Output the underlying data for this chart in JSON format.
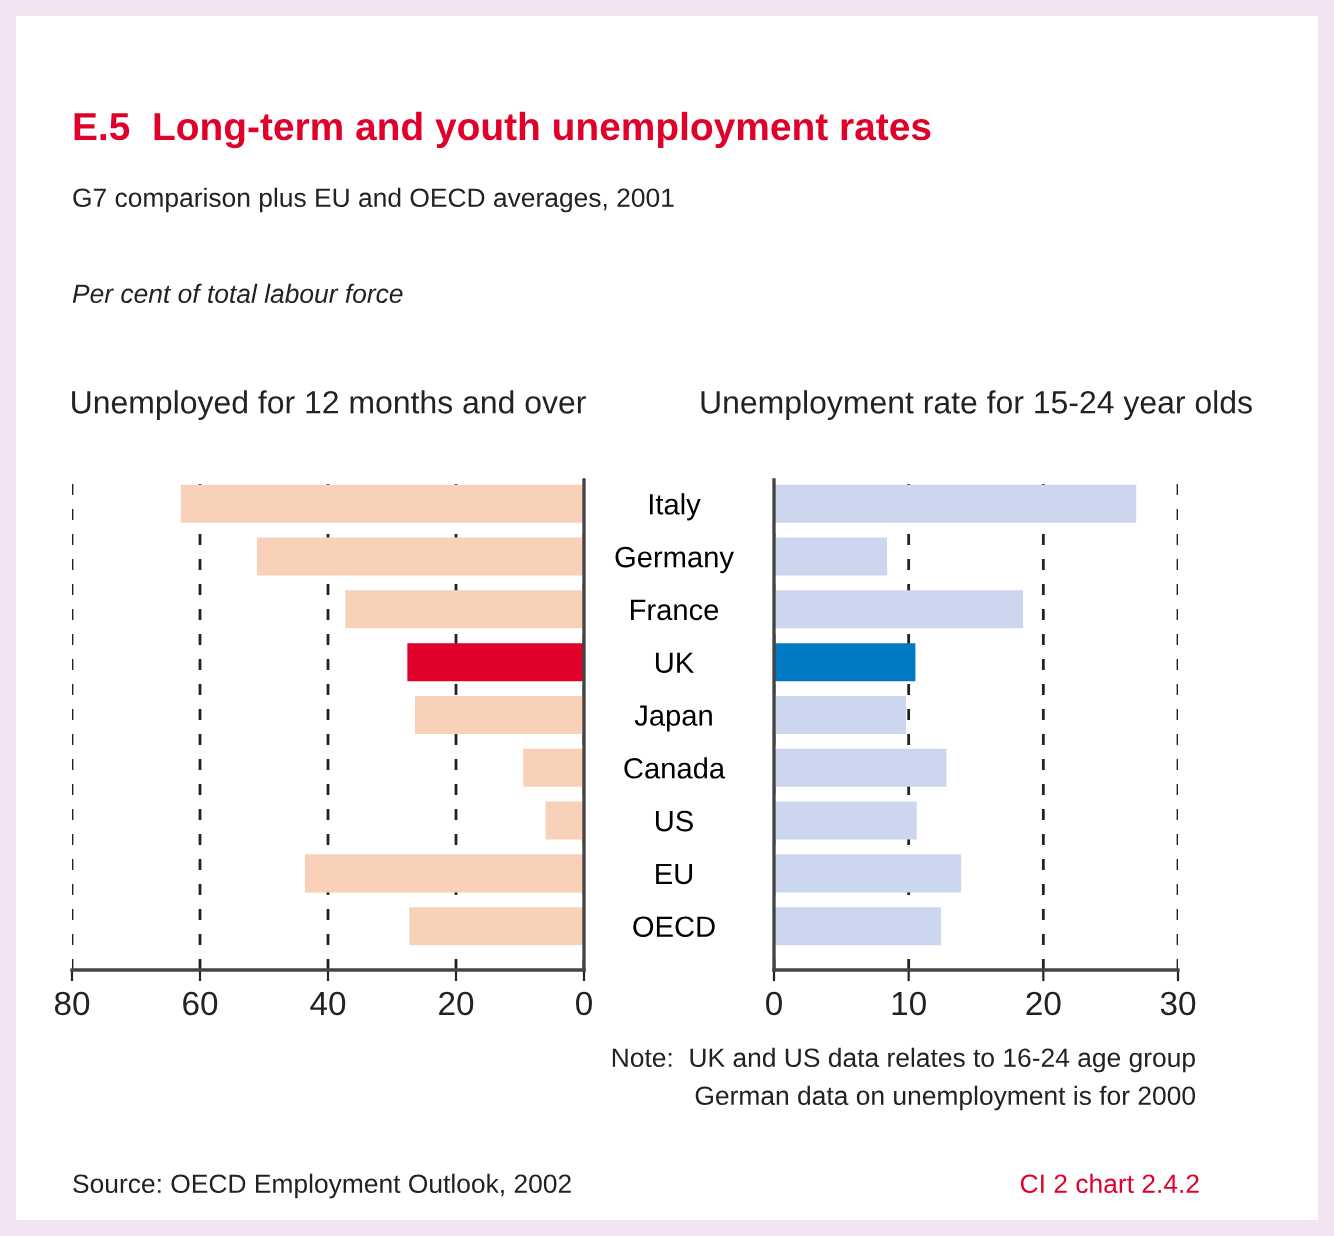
{
  "chart_data": [
    {
      "type": "other",
      "title": "E.5  Long-term and youth unemployment rates",
      "subtitle": "G7 comparison plus EU and OECD averages, 2001",
      "annotations": [
        "Per cent of total labour force",
        "Note:  UK and US data relates to 16-24 age group",
        "German data on unemployment is for 2000",
        "Source: OECD Employment Outlook, 2002",
        "CI 2 chart 2.4.2"
      ]
    },
    {
      "type": "bar",
      "orientation": "horizontal",
      "title": "Unemployed for 12 months and over",
      "categories": [
        null,
        null,
        null,
        null,
        null,
        null,
        null,
        null,
        null
      ],
      "values": [
        63.0,
        51.1,
        37.3,
        27.6,
        26.4,
        9.5,
        6.0,
        43.6,
        27.3
      ],
      "colors": [
        "#f9d0b8",
        "#f9d0b8",
        "#f9d0b8",
        "#e0002a",
        "#f9d0b8",
        "#f9d0b8",
        "#f9d0b8",
        "#f9d0b8",
        "#f9d0b8"
      ],
      "xlim": [
        80,
        0
      ],
      "xticks": [
        80,
        60,
        40,
        20,
        0
      ],
      "grid": "x"
    },
    {
      "type": "bar",
      "orientation": "horizontal",
      "title": "Unemployment rate for 15-24 year olds",
      "categories": [
        "Italy",
        "Germany",
        "France",
        "UK",
        "Japan",
        "Canada",
        "US",
        "EU",
        "OECD"
      ],
      "values": [
        26.9,
        8.4,
        18.5,
        10.5,
        9.8,
        12.8,
        10.6,
        13.9,
        12.4
      ],
      "colors": [
        "#ccd6ee",
        "#ccd6ee",
        "#ccd6ee",
        "#007ac3",
        "#ccd6ee",
        "#ccd6ee",
        "#ccd6ee",
        "#ccd6ee",
        "#ccd6ee"
      ],
      "xlim": [
        0,
        30
      ],
      "xticks": [
        0,
        10,
        20,
        30
      ],
      "grid": "x"
    }
  ]
}
